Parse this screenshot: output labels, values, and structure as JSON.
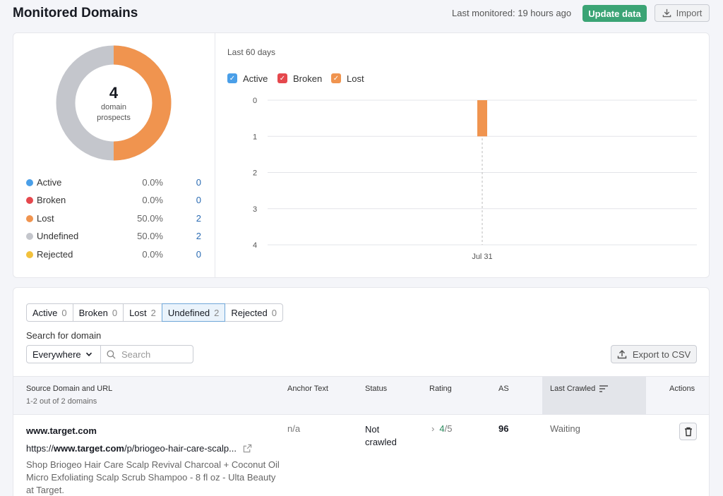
{
  "header": {
    "title": "Monitored Domains",
    "last_monitored": "Last monitored: 19 hours ago",
    "update_label": "Update data",
    "import_label": "Import"
  },
  "summary": {
    "total": "4",
    "total_label_1": "domain",
    "total_label_2": "prospects",
    "legend": [
      {
        "label": "Active",
        "pct": "0.0%",
        "count": "0",
        "color": "#4a9fe8"
      },
      {
        "label": "Broken",
        "pct": "0.0%",
        "count": "0",
        "color": "#e5484d"
      },
      {
        "label": "Lost",
        "pct": "50.0%",
        "count": "2",
        "color": "#f0944f"
      },
      {
        "label": "Undefined",
        "pct": "50.0%",
        "count": "2",
        "color": "#c4c6cc"
      },
      {
        "label": "Rejected",
        "pct": "0.0%",
        "count": "0",
        "color": "#f2c13c"
      }
    ]
  },
  "chart_data": {
    "type": "bar",
    "period": "Last 60 days",
    "series_toggles": [
      {
        "name": "Active",
        "color": "#4a9fe8",
        "checked": true
      },
      {
        "name": "Broken",
        "color": "#e5484d",
        "checked": true
      },
      {
        "name": "Lost",
        "color": "#f0944f",
        "checked": true
      }
    ],
    "categories": [
      "Jul 31"
    ],
    "series": [
      {
        "name": "Active",
        "values": [
          0
        ]
      },
      {
        "name": "Broken",
        "values": [
          0
        ]
      },
      {
        "name": "Lost",
        "values": [
          1
        ]
      }
    ],
    "y_ticks": [
      "0",
      "1",
      "2",
      "3",
      "4"
    ],
    "ylim": [
      0,
      4
    ],
    "y_inverted": true,
    "grid": true
  },
  "filters": {
    "tabs": [
      {
        "label": "Active",
        "count": "0"
      },
      {
        "label": "Broken",
        "count": "0"
      },
      {
        "label": "Lost",
        "count": "2"
      },
      {
        "label": "Undefined",
        "count": "2"
      },
      {
        "label": "Rejected",
        "count": "0"
      }
    ],
    "active_tab": "Undefined",
    "search_label": "Search for domain",
    "scope_value": "Everywhere",
    "search_placeholder": "Search",
    "export_label": "Export to CSV"
  },
  "table": {
    "columns": [
      "Source Domain and URL",
      "Anchor Text",
      "Status",
      "Rating",
      "AS",
      "Last Crawled",
      "Actions"
    ],
    "subheader": "1-2 out of 2 domains",
    "rows": [
      {
        "domain": "www.target.com",
        "url_prefix": "https://",
        "url_host": "www.target.com",
        "url_path": "/p/briogeo-hair-care-scalp...",
        "description": "Shop Briogeo Hair Care Scalp Revival Charcoal + Coconut Oil Micro Exfoliating Scalp Scrub Shampoo - 8 fl oz - Ulta Beauty at Target.",
        "anchor": "n/a",
        "status": "Not crawled",
        "rating": "4",
        "rating_max": "/5",
        "as": "96",
        "last_crawled": "Waiting"
      }
    ]
  }
}
